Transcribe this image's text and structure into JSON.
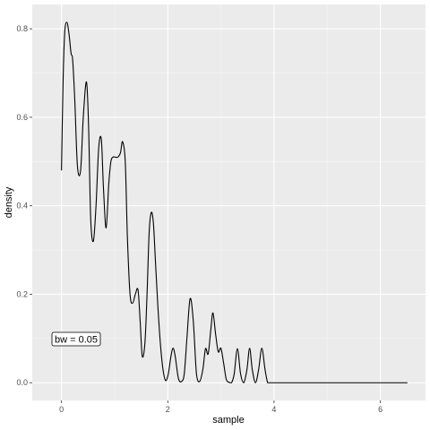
{
  "chart_data": {
    "type": "line",
    "xlabel": "sample",
    "ylabel": "density",
    "xlim": [
      -0.55,
      6.85
    ],
    "ylim": [
      -0.04,
      0.855
    ],
    "x_ticks": [
      0,
      2,
      4,
      6
    ],
    "x_tick_labels": [
      "0",
      "2",
      "4",
      "6"
    ],
    "y_ticks": [
      0.0,
      0.2,
      0.4,
      0.6,
      0.8
    ],
    "y_tick_labels": [
      "0.0",
      "0.2",
      "0.4",
      "0.6",
      "0.8"
    ],
    "grid": true,
    "annotation": {
      "text": "bw = 0.05",
      "x": 0.28,
      "y": 0.1
    },
    "series": [
      {
        "x": [
          0.0,
          0.03,
          0.06,
          0.1,
          0.14,
          0.18,
          0.21,
          0.25,
          0.3,
          0.36,
          0.41,
          0.47,
          0.51,
          0.55,
          0.6,
          0.65,
          0.7,
          0.75,
          0.79,
          0.84,
          0.89,
          0.93,
          0.97,
          1.01,
          1.06,
          1.11,
          1.15,
          1.2,
          1.24,
          1.29,
          1.34,
          1.39,
          1.44,
          1.48,
          1.52,
          1.57,
          1.61,
          1.65,
          1.69,
          1.73,
          1.77,
          1.81,
          1.86,
          1.91,
          1.96,
          2.01,
          2.06,
          2.1,
          2.14,
          2.2,
          2.26,
          2.31,
          2.36,
          2.42,
          2.48,
          2.54,
          2.6,
          2.66,
          2.71,
          2.76,
          2.81,
          2.85,
          2.9,
          2.95,
          3.0,
          3.05,
          3.1,
          3.15,
          3.2,
          3.25,
          3.31,
          3.37,
          3.43,
          3.49,
          3.54,
          3.59,
          3.65,
          3.71,
          3.77,
          3.83,
          3.88,
          3.93,
          3.98,
          4.04,
          4.1,
          4.16,
          4.21,
          4.27,
          4.33,
          4.39,
          4.45,
          4.51,
          4.58,
          4.65,
          4.72,
          4.78,
          4.84,
          4.9,
          4.95,
          5.05,
          5.2,
          5.5,
          5.8,
          6.1,
          6.3,
          6.42,
          6.47,
          6.51
        ],
        "y": [
          0.48,
          0.68,
          0.79,
          0.815,
          0.79,
          0.745,
          0.73,
          0.64,
          0.49,
          0.48,
          0.6,
          0.68,
          0.58,
          0.37,
          0.32,
          0.4,
          0.53,
          0.55,
          0.44,
          0.35,
          0.45,
          0.5,
          0.51,
          0.51,
          0.51,
          0.52,
          0.545,
          0.5,
          0.33,
          0.2,
          0.18,
          0.2,
          0.21,
          0.14,
          0.06,
          0.09,
          0.2,
          0.34,
          0.385,
          0.36,
          0.27,
          0.18,
          0.09,
          0.03,
          0.005,
          0.02,
          0.06,
          0.078,
          0.06,
          0.01,
          0.003,
          0.02,
          0.1,
          0.19,
          0.14,
          0.02,
          0.003,
          0.03,
          0.077,
          0.065,
          0.12,
          0.158,
          0.11,
          0.07,
          0.078,
          0.045,
          0.008,
          0.001,
          0.0,
          0.02,
          0.077,
          0.02,
          0.0,
          0.03,
          0.078,
          0.03,
          0.0,
          0.03,
          0.078,
          0.03,
          0.0,
          0.0,
          0.0,
          0.0,
          0.0,
          0.0,
          0.0,
          0.0,
          0.0,
          0.0,
          0.0,
          0.0,
          0.0,
          0.0,
          0.0,
          0.0,
          0.0,
          0.0,
          0.0,
          0.0,
          0.0,
          0.0,
          0.0,
          0.0,
          0.0,
          0.0,
          0.0,
          0.0
        ]
      }
    ],
    "colors": {
      "panel": "#ebebeb",
      "grid_major": "#ffffff",
      "grid_minor": "#f5f5f5",
      "line": "#000000"
    }
  }
}
